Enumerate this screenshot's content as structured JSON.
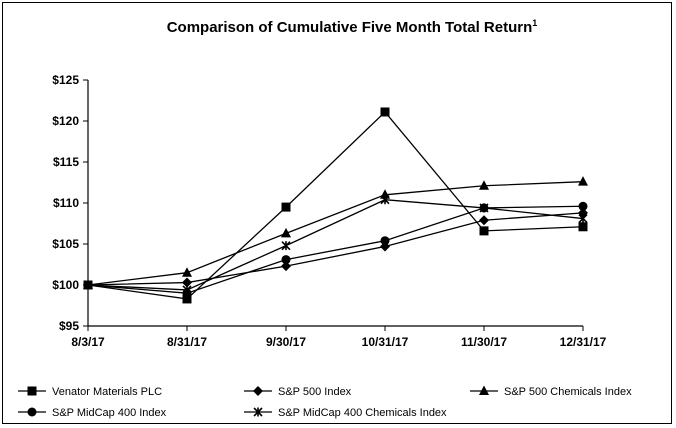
{
  "chart_data": {
    "type": "line",
    "title": "Comparison of Cumulative Five Month Total Return",
    "title_superscript": "1",
    "xlabel": "",
    "ylabel": "",
    "categories": [
      "8/3/17",
      "8/31/17",
      "9/30/17",
      "10/31/17",
      "11/30/17",
      "12/31/17"
    ],
    "ylim": [
      95,
      125
    ],
    "yticks": [
      95,
      100,
      105,
      110,
      115,
      120,
      125
    ],
    "ytick_labels": [
      "$95",
      "$100",
      "$105",
      "$110",
      "$115",
      "$120",
      "$125"
    ],
    "grid": false,
    "legend_position": "bottom",
    "series": [
      {
        "name": "Venator Materials PLC",
        "marker": "square",
        "values": [
          100,
          98.3,
          109.5,
          121.1,
          106.6,
          107.1
        ]
      },
      {
        "name": "S&P 500 Index",
        "marker": "diamond",
        "values": [
          100,
          100.3,
          102.3,
          104.7,
          107.9,
          108.8
        ]
      },
      {
        "name": "S&P 500 Chemicals Index",
        "marker": "triangle",
        "values": [
          100,
          101.5,
          106.3,
          111.0,
          112.1,
          112.6
        ]
      },
      {
        "name": "S&P MidCap 400 Index",
        "marker": "circle",
        "values": [
          100,
          99.0,
          103.1,
          105.4,
          109.4,
          109.6
        ]
      },
      {
        "name": "S&P MidCap 400 Chemicals Index",
        "marker": "star",
        "values": [
          100,
          99.4,
          104.8,
          110.4,
          109.4,
          108.1
        ]
      }
    ]
  }
}
